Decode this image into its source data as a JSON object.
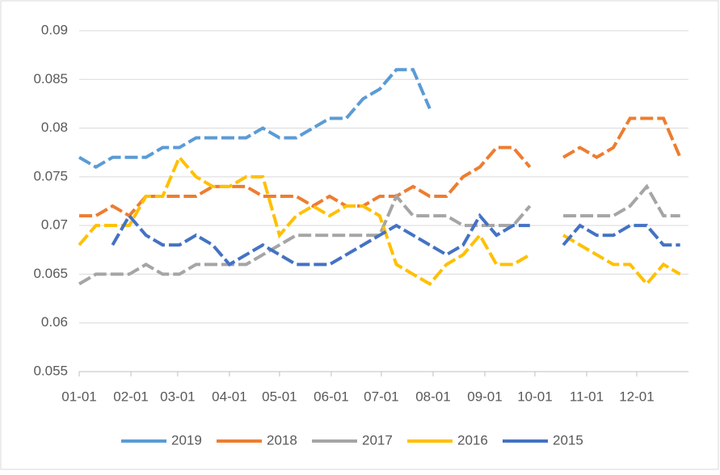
{
  "chart_data": {
    "type": "line",
    "x": [
      1,
      11,
      21,
      31,
      41,
      51,
      61,
      71,
      81,
      91,
      101,
      111,
      121,
      131,
      141,
      151,
      161,
      171,
      181,
      191,
      201,
      211,
      221,
      231,
      241,
      251,
      261,
      271,
      281,
      291,
      301,
      311,
      321,
      331,
      341,
      351,
      361
    ],
    "xlim": [
      1,
      366
    ],
    "xticks": [
      {
        "value": 1,
        "label": "01-01"
      },
      {
        "value": 32,
        "label": "02-01"
      },
      {
        "value": 60,
        "label": "03-01"
      },
      {
        "value": 91,
        "label": "04-01"
      },
      {
        "value": 121,
        "label": "05-01"
      },
      {
        "value": 152,
        "label": "06-01"
      },
      {
        "value": 182,
        "label": "07-01"
      },
      {
        "value": 213,
        "label": "08-01"
      },
      {
        "value": 244,
        "label": "09-01"
      },
      {
        "value": 274,
        "label": "10-01"
      },
      {
        "value": 305,
        "label": "11-01"
      },
      {
        "value": 335,
        "label": "12-01"
      }
    ],
    "ylim": [
      0.055,
      0.09
    ],
    "yticks": [
      0.055,
      0.06,
      0.065,
      0.07,
      0.075,
      0.08,
      0.085,
      0.09
    ],
    "grid": true,
    "legend": "bottom",
    "line_style": "dashed",
    "series": [
      {
        "name": "2019",
        "color": "#5b9bd5",
        "values": [
          0.077,
          0.076,
          0.077,
          0.077,
          0.077,
          0.078,
          0.078,
          0.079,
          0.079,
          0.079,
          0.079,
          0.08,
          0.079,
          0.079,
          0.08,
          0.081,
          0.081,
          0.083,
          0.084,
          0.086,
          0.086,
          0.082,
          null,
          null,
          null,
          null,
          null,
          null,
          null,
          null,
          null,
          null,
          null,
          null,
          null,
          null,
          null
        ]
      },
      {
        "name": "2018",
        "color": "#ed7d31",
        "values": [
          0.071,
          0.071,
          0.072,
          0.071,
          0.073,
          0.073,
          0.073,
          0.073,
          0.074,
          0.074,
          0.074,
          0.073,
          0.073,
          0.073,
          0.072,
          0.073,
          0.072,
          0.072,
          0.073,
          0.073,
          0.074,
          0.073,
          0.073,
          0.075,
          0.076,
          0.078,
          0.078,
          0.076,
          null,
          0.077,
          0.078,
          0.077,
          0.078,
          0.081,
          0.081,
          0.081,
          0.077
        ]
      },
      {
        "name": "2017",
        "color": "#a5a5a5",
        "values": [
          0.064,
          0.065,
          0.065,
          0.065,
          0.066,
          0.065,
          0.065,
          0.066,
          0.066,
          0.066,
          0.066,
          0.067,
          0.068,
          0.069,
          0.069,
          0.069,
          0.069,
          0.069,
          0.069,
          0.073,
          0.071,
          0.071,
          0.071,
          0.07,
          0.07,
          0.07,
          0.07,
          0.072,
          null,
          0.071,
          0.071,
          0.071,
          0.071,
          0.072,
          0.074,
          0.071,
          0.071
        ]
      },
      {
        "name": "2016",
        "color": "#ffc000",
        "values": [
          0.068,
          0.07,
          0.07,
          0.07,
          0.073,
          0.073,
          0.077,
          0.075,
          0.074,
          0.074,
          0.075,
          0.075,
          0.069,
          0.071,
          0.072,
          0.071,
          0.072,
          0.072,
          0.071,
          0.066,
          0.065,
          0.064,
          0.066,
          0.067,
          0.069,
          0.066,
          0.066,
          0.067,
          null,
          0.069,
          0.068,
          0.067,
          0.066,
          0.066,
          0.064,
          0.066,
          0.065
        ]
      },
      {
        "name": "2015",
        "color": "#4472c4",
        "values": [
          null,
          null,
          0.068,
          0.071,
          0.069,
          0.068,
          0.068,
          0.069,
          0.068,
          0.066,
          0.067,
          0.068,
          0.067,
          0.066,
          0.066,
          0.066,
          0.067,
          0.068,
          0.069,
          0.07,
          0.069,
          0.068,
          0.067,
          0.068,
          0.071,
          0.069,
          0.07,
          0.07,
          null,
          0.068,
          0.07,
          0.069,
          0.069,
          0.07,
          0.07,
          0.068,
          0.068
        ]
      }
    ]
  }
}
